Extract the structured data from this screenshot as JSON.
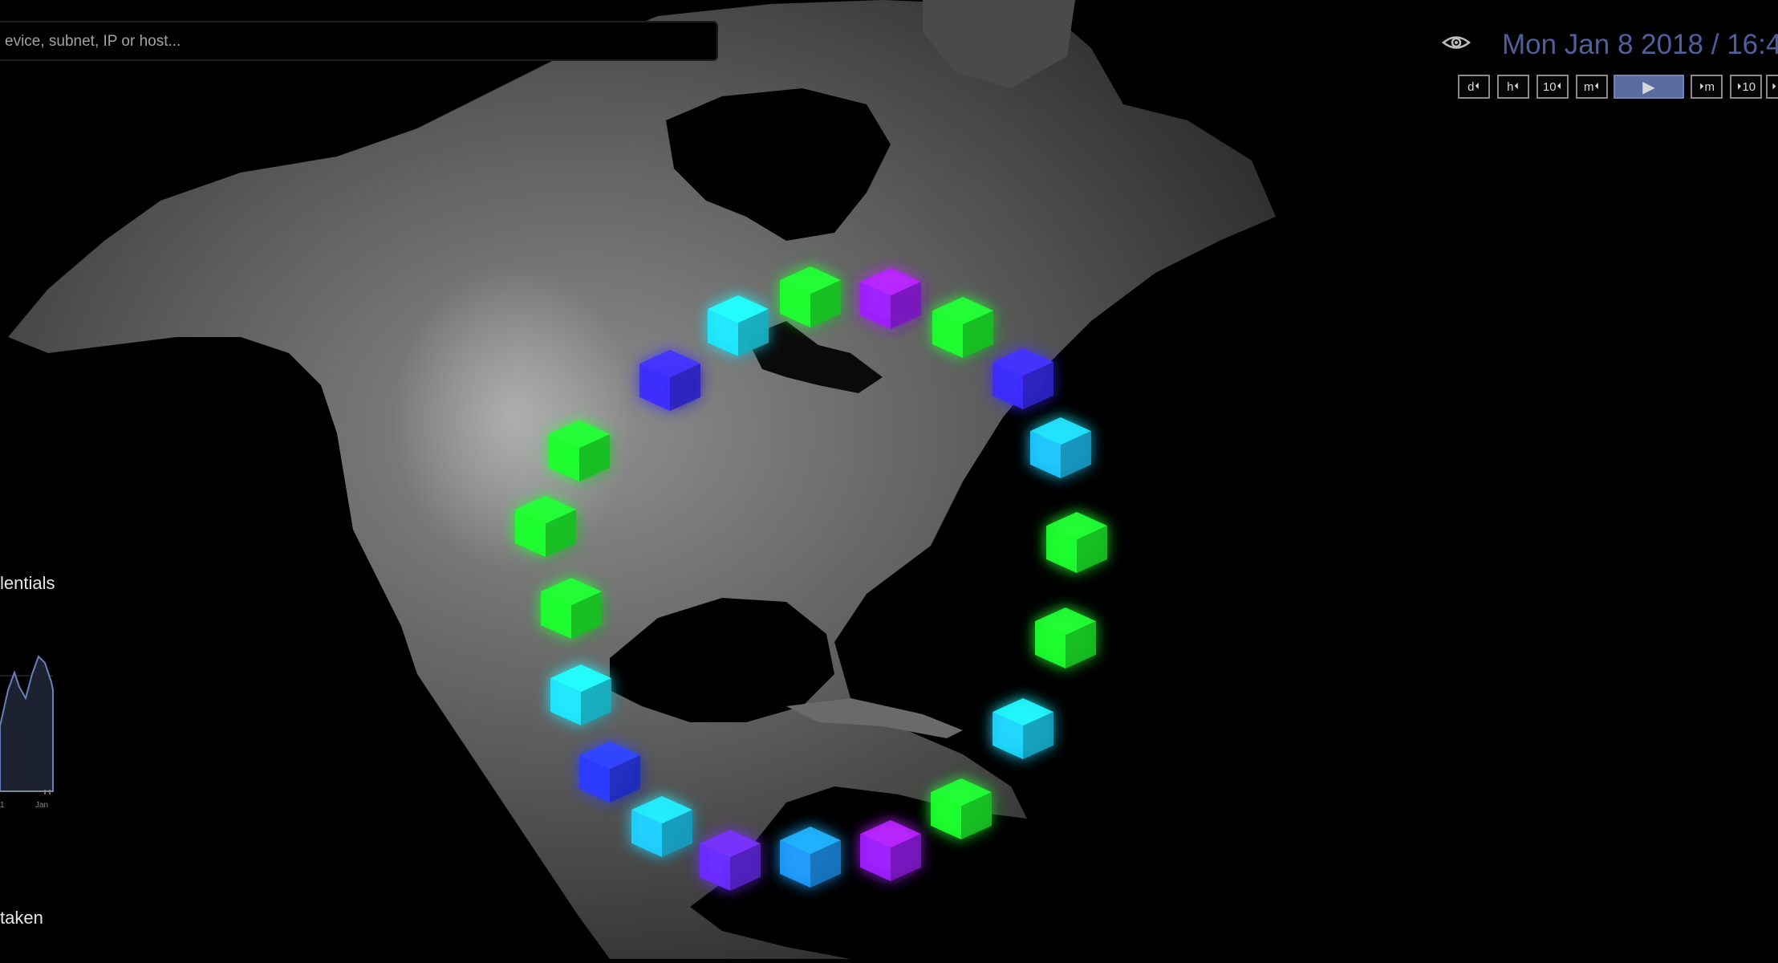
{
  "search": {
    "placeholder": "evice, subnet, IP or host..."
  },
  "timeline": {
    "date": "Mon Jan 8 2018 / 16:4",
    "controls": [
      {
        "name": "step-back-day-button",
        "label": "d",
        "glyph": "⏴",
        "side": "right"
      },
      {
        "name": "step-back-hour-button",
        "label": "h",
        "glyph": "⏴",
        "side": "right"
      },
      {
        "name": "step-back-10-button",
        "label": "10",
        "glyph": "⏴",
        "side": "right"
      },
      {
        "name": "step-back-minute-button",
        "label": "m",
        "glyph": "⏴",
        "side": "right"
      },
      {
        "name": "play-button",
        "label": "",
        "glyph": "▶",
        "side": "center"
      },
      {
        "name": "step-forward-minute-button",
        "label": "m",
        "glyph": "⏵",
        "side": "left"
      },
      {
        "name": "step-forward-10-button",
        "label": "10",
        "glyph": "⏵",
        "side": "left"
      },
      {
        "name": "step-forward-more-button",
        "label": "",
        "glyph": "⏵",
        "side": "left"
      }
    ]
  },
  "sidebar": {
    "credentials_label": "lentials",
    "taken_label": "taken",
    "chart_tick_left": "1",
    "chart_tick_right": "Jan"
  },
  "map": {
    "region": "north-america",
    "cubes": [
      {
        "color": "#3b2cff"
      },
      {
        "color": "#1fe8ff"
      },
      {
        "color": "#1eff2e"
      },
      {
        "color": "#a020ff"
      },
      {
        "color": "#1eff2e"
      },
      {
        "color": "#3b2cff"
      },
      {
        "color": "#1fc8ff"
      },
      {
        "color": "#1eff2e"
      },
      {
        "color": "#1eff2e"
      },
      {
        "color": "#1fd8ff"
      },
      {
        "color": "#1eff2e"
      },
      {
        "color": "#a020ff"
      },
      {
        "color": "#1f9cff"
      },
      {
        "color": "#6a2cff"
      },
      {
        "color": "#1fd0ff"
      },
      {
        "color": "#2a3cff"
      },
      {
        "color": "#1fe8ff"
      },
      {
        "color": "#1eff2e"
      },
      {
        "color": "#1eff2e"
      },
      {
        "color": "#1eff2e"
      }
    ]
  },
  "colors": {
    "accent": "#4f5f9e",
    "play": "#5a6b9e"
  }
}
